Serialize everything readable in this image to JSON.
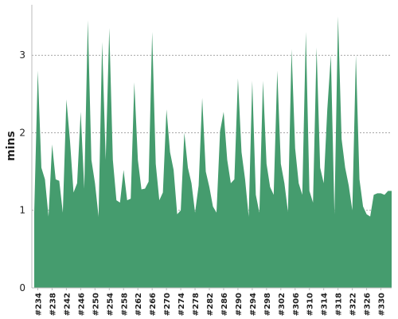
{
  "chart_data": {
    "type": "area",
    "title": "",
    "xlabel": "",
    "ylabel": "mins",
    "ylim": [
      0,
      3.65
    ],
    "y_ticks": [
      0,
      1,
      2,
      3
    ],
    "grid": "horizontal-dashed",
    "legend": "none",
    "x_tick_labels": [
      "#234",
      "#238",
      "#242",
      "#246",
      "#250",
      "#254",
      "#258",
      "#262",
      "#266",
      "#270",
      "#274",
      "#278",
      "#282",
      "#286",
      "#290",
      "#294",
      "#298",
      "#302",
      "#306",
      "#310",
      "#314",
      "#318",
      "#322",
      "#326",
      "#330"
    ],
    "x_tick_positions": [
      234,
      238,
      242,
      246,
      250,
      254,
      258,
      262,
      266,
      270,
      274,
      278,
      282,
      286,
      290,
      294,
      298,
      302,
      306,
      310,
      314,
      318,
      322,
      326,
      330
    ],
    "series": [
      {
        "color": "#459c6e",
        "x": [
          233,
          234,
          235,
          236,
          237,
          238,
          239,
          240,
          241,
          242,
          243,
          244,
          245,
          246,
          247,
          248,
          249,
          250,
          251,
          252,
          253,
          254,
          255,
          256,
          257,
          258,
          259,
          260,
          261,
          262,
          263,
          264,
          265,
          266,
          267,
          268,
          269,
          270,
          271,
          272,
          273,
          274,
          275,
          276,
          277,
          278,
          279,
          280,
          281,
          282,
          283,
          284,
          285,
          286,
          287,
          288,
          289,
          290,
          291,
          292,
          293,
          294,
          295,
          296,
          297,
          298,
          299,
          300,
          301,
          302,
          303,
          304,
          305,
          306,
          307,
          308,
          309,
          310,
          311,
          312,
          313,
          314,
          315,
          316,
          317,
          318,
          319,
          320,
          321,
          322,
          323,
          324,
          325,
          326,
          327,
          328,
          329,
          330,
          331,
          332,
          333
        ],
        "values": [
          0.97,
          2.8,
          1.55,
          1.4,
          0.92,
          1.85,
          1.4,
          1.38,
          0.97,
          2.43,
          1.9,
          1.23,
          1.35,
          2.27,
          1.28,
          3.45,
          1.65,
          1.35,
          0.92,
          3.17,
          1.65,
          3.35,
          1.65,
          1.13,
          1.1,
          1.52,
          1.13,
          1.15,
          2.65,
          1.65,
          1.27,
          1.28,
          1.37,
          3.3,
          1.6,
          1.13,
          1.23,
          2.3,
          1.75,
          1.52,
          0.95,
          1.0,
          2.0,
          1.55,
          1.35,
          0.97,
          1.32,
          2.45,
          1.5,
          1.3,
          1.05,
          0.97,
          2.02,
          2.27,
          1.65,
          1.35,
          1.4,
          2.7,
          1.75,
          1.4,
          0.92,
          2.67,
          1.2,
          0.97,
          2.67,
          1.6,
          1.3,
          1.2,
          2.8,
          1.6,
          1.35,
          0.98,
          3.08,
          1.8,
          1.35,
          1.2,
          3.3,
          1.25,
          1.1,
          3.1,
          1.55,
          1.35,
          2.3,
          3.0,
          0.95,
          3.5,
          1.92,
          1.55,
          1.32,
          1.0,
          3.0,
          1.4,
          1.05,
          0.95,
          0.92,
          1.2,
          1.22,
          1.22,
          1.2,
          1.25,
          1.25
        ]
      }
    ]
  }
}
